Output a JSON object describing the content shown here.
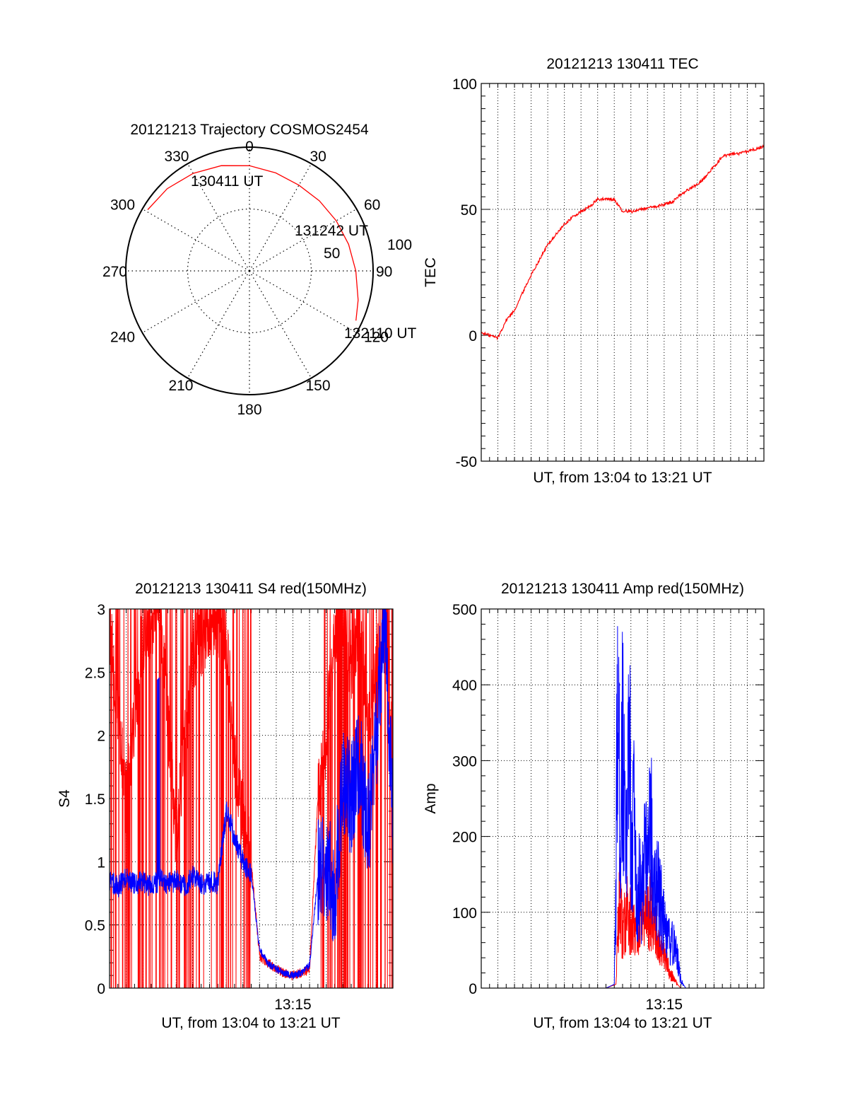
{
  "colors": {
    "red": "#ff0000",
    "blue": "#0000ff",
    "axis": "#000000",
    "grid": "#000000"
  },
  "chart_data": [
    {
      "id": "trajectory",
      "type": "polar",
      "title": "20121213 Trajectory COSMOS2454",
      "azimuth_ticks": [
        "0",
        "30",
        "60",
        "90",
        "120",
        "150",
        "180",
        "210",
        "240",
        "270",
        "300",
        "330"
      ],
      "radial_ticks": [
        "50",
        "100"
      ],
      "rlim": [
        0,
        100
      ],
      "track": {
        "azimuth_deg": [
          301,
          315,
          330,
          345,
          0,
          15,
          30,
          45,
          60,
          75,
          90,
          105,
          115
        ],
        "zenith_deg": [
          96,
          94,
          91,
          88,
          85,
          82,
          80,
          80,
          81,
          83,
          86,
          91,
          95
        ]
      },
      "annotations": [
        {
          "text": "130411 UT",
          "azimuth_deg": 330,
          "zenith_deg": 88
        },
        {
          "text": "131242 UT",
          "azimuth_deg": 60,
          "zenith_deg": 76
        },
        {
          "text": "132110 UT",
          "azimuth_deg": 112,
          "zenith_deg": 98
        }
      ]
    },
    {
      "id": "tec",
      "type": "line",
      "title": "20121213 130411 TEC",
      "xlabel": "UT, from 13:04 to 13:21 UT",
      "ylabel": "TEC",
      "xlim": [
        0,
        17
      ],
      "ylim": [
        -50,
        100
      ],
      "yticks": [
        "-50",
        "0",
        "50",
        "100"
      ],
      "grid": true,
      "series": [
        {
          "color": "red",
          "x": [
            0,
            0.5,
            1,
            1.5,
            2,
            2.5,
            3,
            3.5,
            4,
            4.5,
            5,
            5.5,
            6,
            6.5,
            7,
            7.5,
            8,
            8.5,
            9,
            9.1,
            9.5,
            10,
            10.5,
            11,
            11.5,
            12,
            12.5,
            13,
            13.5,
            14,
            14.5,
            15,
            15.5,
            16,
            16.5,
            17
          ],
          "y": [
            1,
            0,
            -1,
            6,
            10,
            17,
            24,
            30,
            36,
            40,
            44,
            47,
            49,
            51,
            54,
            54,
            54,
            49,
            49.5,
            49,
            50,
            50.5,
            51,
            52,
            53,
            56,
            58,
            60,
            63,
            67,
            71,
            72,
            72,
            73,
            74,
            75
          ]
        }
      ]
    },
    {
      "id": "s4",
      "type": "line",
      "title": "20121213 130411 S4 red(150MHz)",
      "xlabel": "UT, from 13:04 to 13:21 UT",
      "ylabel": "S4",
      "xlim": [
        0,
        17
      ],
      "ylim": [
        0,
        3
      ],
      "yticks": [
        "0",
        "0.5",
        "1",
        "1.5",
        "2",
        "2.5",
        "3"
      ],
      "xtick_labels": [
        {
          "x": 11,
          "label": "13:15"
        }
      ],
      "grid": true,
      "series": [
        {
          "color": "red",
          "x": [
            0,
            1,
            2,
            3,
            4,
            5,
            6,
            6.5,
            7,
            7.5,
            8,
            8.5,
            9,
            9.5,
            10,
            10.5,
            11,
            11.5,
            12,
            12.5,
            13,
            13.5,
            14,
            14.5,
            15,
            15.5,
            16,
            16.5,
            17
          ],
          "y": [
            2.9,
            1.5,
            2.8,
            3.0,
            1.2,
            2.6,
            2.9,
            2.9,
            2.8,
            1.8,
            1.4,
            1.0,
            0.25,
            0.2,
            0.15,
            0.12,
            0.1,
            0.12,
            0.15,
            1.5,
            2.0,
            2.8,
            3.0,
            2.5,
            3.0,
            2.0,
            2.5,
            3.0,
            1.8
          ]
        },
        {
          "color": "blue",
          "x": [
            0,
            0.5,
            1,
            1.5,
            2,
            2.5,
            3,
            3.5,
            4,
            4.5,
            5,
            5.5,
            6,
            6.5,
            7,
            7.5,
            8,
            8.5,
            9,
            9.5,
            10,
            10.5,
            11,
            11.5,
            12,
            12.5,
            13,
            13.5,
            14,
            14.5,
            15,
            15.5,
            16,
            16.5,
            17
          ],
          "y": [
            0.85,
            0.8,
            0.87,
            0.82,
            0.85,
            0.8,
            0.86,
            0.83,
            0.85,
            0.8,
            0.88,
            0.82,
            0.84,
            0.83,
            1.4,
            1.2,
            1.0,
            0.9,
            0.3,
            0.2,
            0.15,
            0.12,
            0.1,
            0.12,
            0.18,
            0.9,
            1.0,
            0.75,
            1.6,
            1.5,
            1.8,
            1.2,
            2.0,
            3.0,
            1.3
          ]
        }
      ]
    },
    {
      "id": "amp",
      "type": "line",
      "title": "20121213 130411 Amp red(150MHz)",
      "xlabel": "UT, from 13:04 to 13:21 UT",
      "ylabel": "Amp",
      "xlim": [
        0,
        17
      ],
      "ylim": [
        0,
        500
      ],
      "yticks": [
        "0",
        "100",
        "200",
        "300",
        "400",
        "500"
      ],
      "xtick_labels": [
        {
          "x": 11,
          "label": "13:15"
        }
      ],
      "grid": true,
      "series": [
        {
          "color": "red",
          "x": [
            0,
            7.5,
            8.1,
            8.3,
            8.5,
            8.8,
            9.0,
            9.3,
            9.6,
            9.9,
            10.2,
            10.5,
            10.8,
            11.2,
            11.6,
            12.0,
            17
          ],
          "y": [
            0,
            0,
            5,
            120,
            70,
            110,
            80,
            70,
            100,
            95,
            110,
            80,
            50,
            30,
            10,
            0,
            0
          ]
        },
        {
          "color": "blue",
          "x": [
            0,
            7.5,
            8.0,
            8.1,
            8.2,
            8.35,
            8.5,
            8.7,
            8.9,
            9.05,
            9.2,
            9.35,
            9.5,
            9.65,
            9.8,
            10.0,
            10.2,
            10.4,
            10.6,
            10.8,
            11.0,
            11.2,
            11.4,
            11.6,
            11.8,
            12.0,
            12.3,
            17
          ],
          "y": [
            0,
            0,
            5,
            120,
            430,
            200,
            330,
            150,
            390,
            160,
            260,
            100,
            140,
            110,
            160,
            180,
            210,
            150,
            130,
            110,
            80,
            60,
            60,
            55,
            40,
            10,
            0,
            0
          ]
        }
      ]
    }
  ]
}
